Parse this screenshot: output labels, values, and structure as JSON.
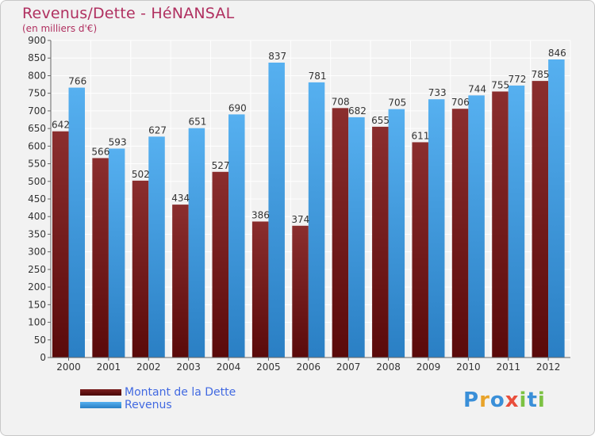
{
  "chart_data": {
    "type": "bar",
    "title": "Revenus/Dette - HéNANSAL",
    "subtitle": "(en milliers d'€)",
    "categories": [
      "2000",
      "2001",
      "2002",
      "2003",
      "2004",
      "2005",
      "2006",
      "2007",
      "2008",
      "2009",
      "2010",
      "2011",
      "2012"
    ],
    "series": [
      {
        "name": "Montant de la Dette",
        "color": "#7a1f1f",
        "values": [
          642,
          566,
          502,
          434,
          527,
          386,
          374,
          708,
          655,
          611,
          706,
          755,
          785
        ]
      },
      {
        "name": "Revenus",
        "color": "#3f9de6",
        "values": [
          766,
          593,
          627,
          651,
          690,
          837,
          781,
          682,
          705,
          733,
          744,
          772,
          846
        ]
      }
    ],
    "ylim": [
      0,
      900
    ],
    "yticks": [
      0,
      50,
      100,
      150,
      200,
      250,
      300,
      350,
      400,
      450,
      500,
      550,
      600,
      650,
      700,
      750,
      800,
      850,
      900
    ],
    "grid": true,
    "legend_position": "bottom-left"
  },
  "branding": {
    "logo_letters": [
      {
        "ch": "P",
        "color": "#3a8fd8"
      },
      {
        "ch": "r",
        "color": "#e8a32a"
      },
      {
        "ch": "o",
        "color": "#3a8fd8"
      },
      {
        "ch": "x",
        "color": "#e94e3c"
      },
      {
        "ch": "i",
        "color": "#7cc243"
      },
      {
        "ch": "t",
        "color": "#3a8fd8"
      },
      {
        "ch": "i",
        "color": "#7cc243"
      }
    ]
  }
}
